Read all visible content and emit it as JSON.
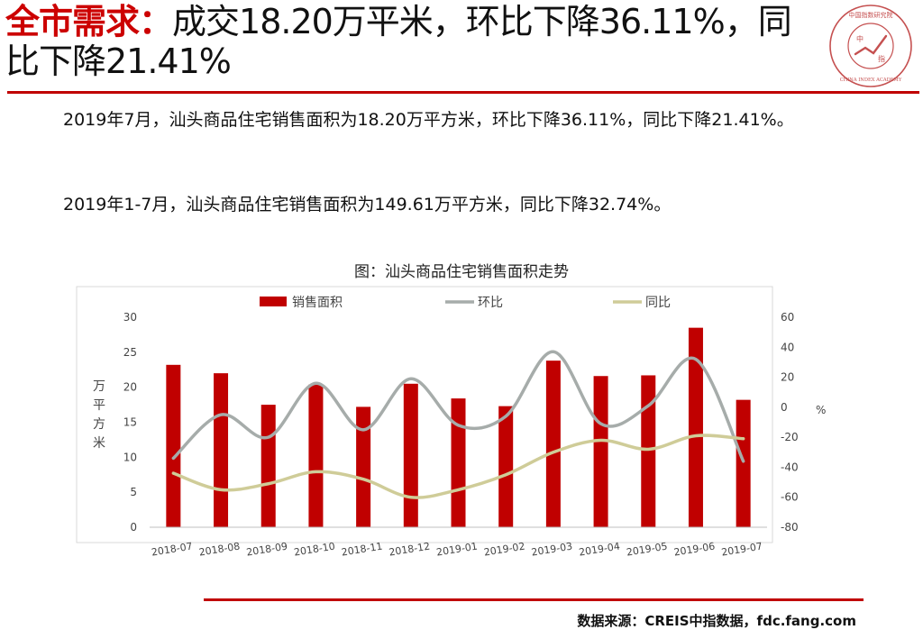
{
  "headline": {
    "keyword": "全市需求：",
    "rest": "成交18.20万平米，环比下降36.11%，同比下降21.41%"
  },
  "logo": {
    "ring_text": "中国指数研究院",
    "center_top": "中",
    "center_bottom": "指",
    "english": "CHINA INDEX ACADEMY"
  },
  "paragraphs": {
    "p1": "2019年7月，汕头商品住宅销售面积为18.20万平方米，环比下降36.11%，同比下降21.41%。",
    "p2": "2019年1-7月，汕头商品住宅销售面积为149.61万平方米，同比下降32.74%。"
  },
  "chart_title": "图：汕头商品住宅销售面积走势",
  "source": "数据来源：CREIS中指数据，fdc.fang.com",
  "chart_data": {
    "type": "bar",
    "categories": [
      "2018-07",
      "2018-08",
      "2018-09",
      "2018-10",
      "2018-11",
      "2018-12",
      "2019-01",
      "2019-02",
      "2019-03",
      "2019-04",
      "2019-05",
      "2019-06",
      "2019-07"
    ],
    "series": [
      {
        "name": "销售面积",
        "type": "bar",
        "axis": "left",
        "color": "#c00000",
        "values": [
          23.2,
          22.0,
          17.5,
          20.4,
          17.2,
          20.5,
          18.4,
          17.3,
          23.8,
          21.6,
          21.7,
          28.5,
          18.2
        ]
      },
      {
        "name": "环比",
        "type": "line",
        "axis": "right",
        "color": "#a6acaa",
        "values": [
          -34,
          -5,
          -20,
          16,
          -15,
          19,
          -12,
          -6,
          37,
          -11,
          1,
          32,
          -36
        ]
      },
      {
        "name": "同比",
        "type": "line",
        "axis": "right",
        "color": "#cfcc98",
        "values": [
          -44,
          -55,
          -51,
          -43,
          -48,
          -60,
          -55,
          -45,
          -30,
          -22,
          -28,
          -19,
          -21
        ]
      }
    ],
    "ylabel": "万平方米",
    "y2label": "%",
    "ylim": [
      0,
      30
    ],
    "yticks": [
      0,
      5,
      10,
      15,
      20,
      25,
      30
    ],
    "y2lim": [
      -80,
      60
    ],
    "y2ticks": [
      -80,
      -60,
      -40,
      -20,
      0,
      20,
      40,
      60
    ],
    "legend_position": "top",
    "grid": false
  }
}
